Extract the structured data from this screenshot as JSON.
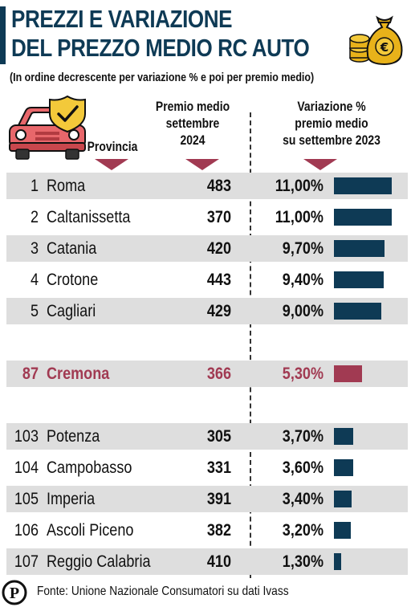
{
  "header": {
    "title_line1": "PREZZI E VARIAZIONE",
    "title_line2": "DEL PREZZO MEDIO RC AUTO",
    "subtitle": "(In ordine decrescente per variazione % e poi per premio medio)",
    "money_bag_symbol": "€"
  },
  "columns": {
    "provincia": "Provincia",
    "premio_line1": "Premio medio",
    "premio_line2": "settembre",
    "premio_line3": "2024",
    "var_line1": "Variazione %",
    "var_line2": "premio medio",
    "var_line3": "su settembre 2023"
  },
  "colors": {
    "navy": "#0e3a55",
    "highlight": "#a13a52",
    "row_shade": "#dedede",
    "gold": "#e8b21a"
  },
  "chart_data": {
    "type": "table",
    "title": "PREZZI E VARIAZIONE DEL PREZZO MEDIO RC AUTO",
    "subtitle": "(In ordine decrescente per variazione % e poi per premio medio)",
    "headers": [
      "Provincia",
      "Premio medio settembre 2024",
      "Variazione % premio medio su settembre 2023"
    ],
    "bar_max": 11.0,
    "rows": [
      {
        "rank": "1",
        "provincia": "Roma",
        "premio": "483",
        "variazione_label": "11,00%",
        "variazione": 11.0,
        "highlight": false
      },
      {
        "rank": "2",
        "provincia": "Caltanissetta",
        "premio": "370",
        "variazione_label": "11,00%",
        "variazione": 11.0,
        "highlight": false
      },
      {
        "rank": "3",
        "provincia": "Catania",
        "premio": "420",
        "variazione_label": "9,70%",
        "variazione": 9.7,
        "highlight": false
      },
      {
        "rank": "4",
        "provincia": "Crotone",
        "premio": "443",
        "variazione_label": "9,40%",
        "variazione": 9.4,
        "highlight": false
      },
      {
        "rank": "5",
        "provincia": "Cagliari",
        "premio": "429",
        "variazione_label": "9,00%",
        "variazione": 9.0,
        "highlight": false
      },
      {
        "rank": "87",
        "provincia": "Cremona",
        "premio": "366",
        "variazione_label": "5,30%",
        "variazione": 5.3,
        "highlight": true
      },
      {
        "rank": "103",
        "provincia": "Potenza",
        "premio": "305",
        "variazione_label": "3,70%",
        "variazione": 3.7,
        "highlight": false
      },
      {
        "rank": "104",
        "provincia": "Campobasso",
        "premio": "331",
        "variazione_label": "3,60%",
        "variazione": 3.6,
        "highlight": false
      },
      {
        "rank": "105",
        "provincia": "Imperia",
        "premio": "391",
        "variazione_label": "3,40%",
        "variazione": 3.4,
        "highlight": false
      },
      {
        "rank": "106",
        "provincia": "Ascoli Piceno",
        "premio": "382",
        "variazione_label": "3,20%",
        "variazione": 3.2,
        "highlight": false
      },
      {
        "rank": "107",
        "provincia": "Reggio Calabria",
        "premio": "410",
        "variazione_label": "1,30%",
        "variazione": 1.3,
        "highlight": false
      }
    ]
  },
  "footer": {
    "logo_letter": "P",
    "source": "Fonte: Unione Nazionale Consumatori su dati Ivass"
  }
}
